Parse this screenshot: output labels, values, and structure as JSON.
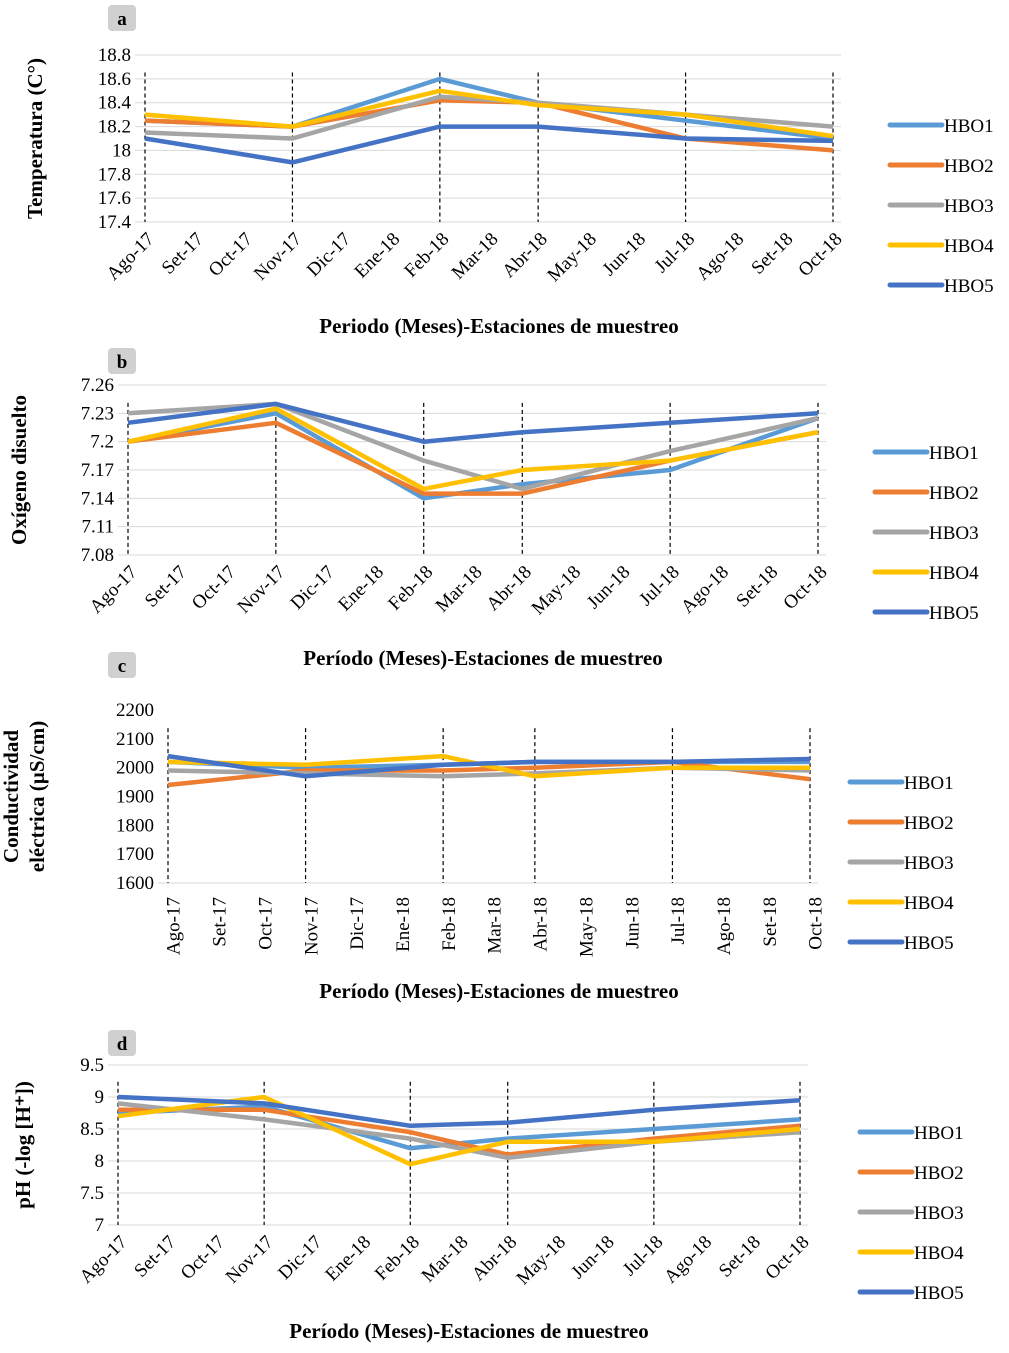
{
  "chart_data": [
    {
      "type": "line",
      "label": "a",
      "y_label": [
        "Temperatura (C°)"
      ],
      "x_label": "Periodo (Meses)-Estaciones de muestreo",
      "categories": [
        "Ago-17",
        "Set-17",
        "Oct-17",
        "Nov-17",
        "Dic-17",
        "Ene-18",
        "Feb-18",
        "Mar-18",
        "Abr-18",
        "May-18",
        "Jun-18",
        "Jul-18",
        "Ago-18",
        "Set-18",
        "Oct-18"
      ],
      "ylim": [
        17.4,
        18.8
      ],
      "yticks": [
        17.4,
        17.6,
        17.8,
        18,
        18.2,
        18.4,
        18.6,
        18.8
      ],
      "grid": true,
      "connect_gaps": true,
      "legend": "right",
      "series": [
        {
          "name": "HBO1",
          "color": "#5b9bd5",
          "values": [
            18.25,
            null,
            null,
            18.2,
            null,
            null,
            18.6,
            null,
            18.4,
            null,
            null,
            18.25,
            null,
            null,
            18.1
          ]
        },
        {
          "name": "HBO2",
          "color": "#ed7d31",
          "values": [
            18.25,
            null,
            null,
            18.2,
            null,
            null,
            18.42,
            null,
            18.4,
            null,
            null,
            18.1,
            null,
            null,
            18.0
          ]
        },
        {
          "name": "HBO3",
          "color": "#a5a5a5",
          "values": [
            18.15,
            null,
            null,
            18.1,
            null,
            null,
            18.45,
            null,
            18.4,
            null,
            null,
            18.3,
            null,
            null,
            18.2
          ]
        },
        {
          "name": "HBO4",
          "color": "#ffc000",
          "values": [
            18.3,
            null,
            null,
            18.2,
            null,
            null,
            18.5,
            null,
            18.38,
            null,
            null,
            18.3,
            null,
            null,
            18.12
          ]
        },
        {
          "name": "HBO5",
          "color": "#4472c4",
          "values": [
            18.1,
            null,
            null,
            17.9,
            null,
            null,
            18.2,
            null,
            18.2,
            null,
            null,
            18.1,
            null,
            null,
            18.08
          ]
        }
      ]
    },
    {
      "type": "line",
      "label": "b",
      "y_label": [
        "Oxígeno disuelto"
      ],
      "x_label": "Período (Meses)-Estaciones de muestreo",
      "categories": [
        "Ago-17",
        "Set-17",
        "Oct-17",
        "Nov-17",
        "Dic-17",
        "Ene-18",
        "Feb-18",
        "Mar-18",
        "Abr-18",
        "May-18",
        "Jun-18",
        "Jul-18",
        "Ago-18",
        "Set-18",
        "Oct-18"
      ],
      "ylim": [
        7.08,
        7.26
      ],
      "yticks": [
        7.08,
        7.11,
        7.14,
        7.17,
        7.2,
        7.23,
        7.26
      ],
      "grid": true,
      "connect_gaps": true,
      "legend": "right",
      "series": [
        {
          "name": "HBO1",
          "color": "#5b9bd5",
          "values": [
            7.2,
            null,
            null,
            7.23,
            null,
            null,
            7.14,
            null,
            7.155,
            null,
            null,
            7.17,
            null,
            null,
            7.225
          ]
        },
        {
          "name": "HBO2",
          "color": "#ed7d31",
          "values": [
            7.2,
            null,
            null,
            7.22,
            null,
            null,
            7.145,
            null,
            7.145,
            null,
            null,
            7.18,
            null,
            null,
            7.21
          ]
        },
        {
          "name": "HBO3",
          "color": "#a5a5a5",
          "values": [
            7.23,
            null,
            null,
            7.24,
            null,
            null,
            7.18,
            null,
            7.15,
            null,
            null,
            7.19,
            null,
            null,
            7.225
          ]
        },
        {
          "name": "HBO4",
          "color": "#ffc000",
          "values": [
            7.2,
            null,
            null,
            7.235,
            null,
            null,
            7.15,
            null,
            7.17,
            null,
            null,
            7.18,
            null,
            null,
            7.21
          ]
        },
        {
          "name": "HBO5",
          "color": "#4472c4",
          "values": [
            7.22,
            null,
            null,
            7.24,
            null,
            null,
            7.2,
            null,
            7.21,
            null,
            null,
            7.22,
            null,
            null,
            7.23
          ]
        }
      ]
    },
    {
      "type": "line",
      "label": "c",
      "y_label": [
        "Conductividad",
        "eléctrica (µS/cm)"
      ],
      "x_label": "Período (Meses)-Estaciones de muestreo",
      "categories": [
        "Ago-17",
        "Set-17",
        "Oct-17",
        "Nov-17",
        "Dic-17",
        "Ene-18",
        "Feb-18",
        "Mar-18",
        "Abr-18",
        "May-18",
        "Jun-18",
        "Jul-18",
        "Ago-18",
        "Set-18",
        "Oct-18"
      ],
      "ylim": [
        1600,
        2200
      ],
      "yticks": [
        1600,
        1700,
        1800,
        1900,
        2000,
        2100,
        2200
      ],
      "grid": false,
      "connect_gaps": true,
      "legend": "right",
      "series": [
        {
          "name": "HBO1",
          "color": "#5b9bd5",
          "values": [
            2020,
            null,
            null,
            2000,
            null,
            null,
            2010,
            null,
            2020,
            null,
            null,
            2020,
            null,
            null,
            2020
          ]
        },
        {
          "name": "HBO2",
          "color": "#ed7d31",
          "values": [
            1940,
            null,
            null,
            1990,
            null,
            null,
            1990,
            null,
            2000,
            null,
            null,
            2020,
            null,
            null,
            1960
          ]
        },
        {
          "name": "HBO3",
          "color": "#a5a5a5",
          "values": [
            1990,
            null,
            null,
            1980,
            null,
            null,
            1970,
            null,
            1980,
            null,
            null,
            2000,
            null,
            null,
            1990
          ]
        },
        {
          "name": "HBO4",
          "color": "#ffc000",
          "values": [
            2020,
            null,
            null,
            2010,
            null,
            null,
            2040,
            null,
            1970,
            null,
            null,
            2000,
            null,
            null,
            2000
          ]
        },
        {
          "name": "HBO5",
          "color": "#4472c4",
          "values": [
            2040,
            null,
            null,
            1970,
            null,
            null,
            2010,
            null,
            2020,
            null,
            null,
            2020,
            null,
            null,
            2030
          ]
        }
      ]
    },
    {
      "type": "line",
      "label": "d",
      "y_label": [
        "pH (-log [H⁺])"
      ],
      "x_label": "Período (Meses)-Estaciones de muestreo",
      "categories": [
        "Ago-17",
        "Set-17",
        "Oct-17",
        "Nov-17",
        "Dic-17",
        "Ene-18",
        "Feb-18",
        "Mar-18",
        "Abr-18",
        "May-18",
        "Jun-18",
        "Jul-18",
        "Ago-18",
        "Set-18",
        "Oct-18"
      ],
      "ylim": [
        7,
        9.5
      ],
      "yticks": [
        7,
        7.5,
        8,
        8.5,
        9,
        9.5
      ],
      "grid": true,
      "connect_gaps": true,
      "legend": "right",
      "series": [
        {
          "name": "HBO1",
          "color": "#5b9bd5",
          "values": [
            8.75,
            null,
            null,
            8.85,
            null,
            null,
            8.2,
            null,
            8.35,
            null,
            null,
            8.5,
            null,
            null,
            8.65
          ]
        },
        {
          "name": "HBO2",
          "color": "#ed7d31",
          "values": [
            8.8,
            null,
            null,
            8.8,
            null,
            null,
            8.45,
            null,
            8.1,
            null,
            null,
            8.35,
            null,
            null,
            8.55
          ]
        },
        {
          "name": "HBO3",
          "color": "#a5a5a5",
          "values": [
            8.9,
            null,
            null,
            8.65,
            null,
            null,
            8.35,
            null,
            8.05,
            null,
            null,
            8.3,
            null,
            null,
            8.45
          ]
        },
        {
          "name": "HBO4",
          "color": "#ffc000",
          "values": [
            8.7,
            null,
            null,
            9.0,
            null,
            null,
            7.95,
            null,
            8.3,
            null,
            null,
            8.3,
            null,
            null,
            8.5
          ]
        },
        {
          "name": "HBO5",
          "color": "#4472c4",
          "values": [
            9.0,
            null,
            null,
            8.9,
            null,
            null,
            8.55,
            null,
            8.6,
            null,
            null,
            8.8,
            null,
            null,
            8.95
          ]
        }
      ]
    }
  ]
}
